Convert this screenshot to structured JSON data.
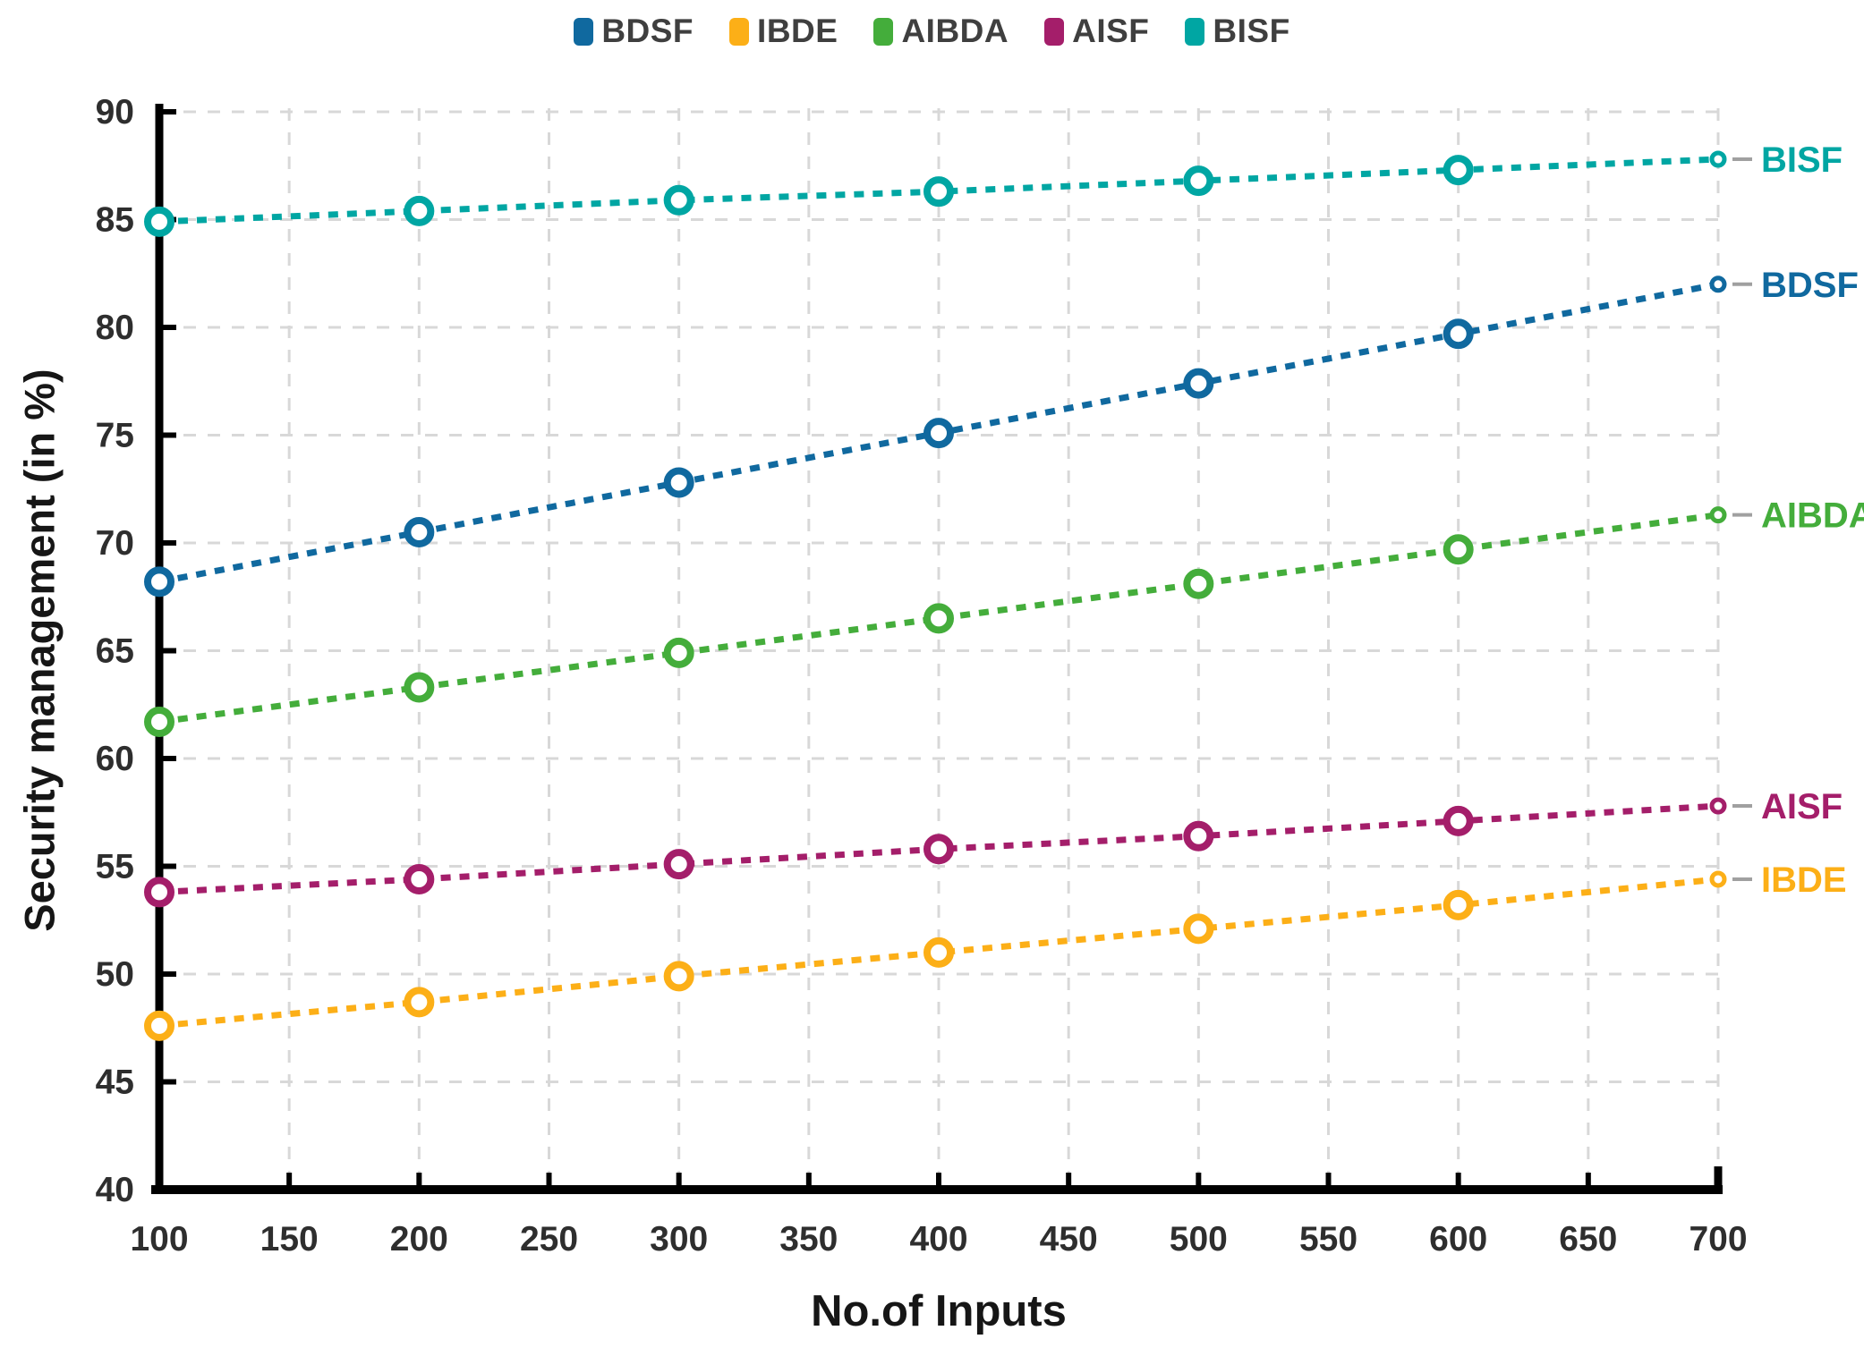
{
  "chart_data": {
    "type": "line",
    "title": "",
    "xlabel": "No.of Inputs",
    "ylabel": "Security management (in %)",
    "x": [
      100,
      200,
      300,
      400,
      500,
      600,
      700
    ],
    "xticks": [
      100,
      150,
      200,
      250,
      300,
      350,
      400,
      450,
      500,
      550,
      600,
      650,
      700
    ],
    "yticks": [
      40,
      45,
      50,
      55,
      60,
      65,
      70,
      75,
      80,
      85,
      90
    ],
    "xlim": [
      100,
      700
    ],
    "ylim": [
      40,
      90
    ],
    "grid": "dashed",
    "line_style": "dotted",
    "legend_position": "top-center",
    "series": [
      {
        "name": "BDSF",
        "color": "#10699f",
        "values": [
          68.2,
          70.5,
          72.8,
          75.1,
          77.4,
          79.7,
          82.0
        ]
      },
      {
        "name": "IBDE",
        "color": "#fcaf17",
        "values": [
          47.6,
          48.7,
          49.9,
          51.0,
          52.1,
          53.2,
          54.4
        ]
      },
      {
        "name": "AIBDA",
        "color": "#44ad3b",
        "values": [
          61.7,
          63.3,
          64.9,
          66.5,
          68.1,
          69.7,
          71.3
        ]
      },
      {
        "name": "AISF",
        "color": "#a41e6a",
        "values": [
          53.8,
          54.4,
          55.1,
          55.8,
          56.4,
          57.1,
          57.8
        ]
      },
      {
        "name": "BISF",
        "color": "#00a6a3",
        "values": [
          84.9,
          85.4,
          85.9,
          86.3,
          86.8,
          87.3,
          87.8
        ]
      }
    ]
  },
  "styles": {
    "grid_color": "#d8d8d8",
    "axis_color": "#000000",
    "tick_label_color": "#2e2e2e",
    "leader_dash_color": "#a0a0a0",
    "background": "#ffffff"
  }
}
